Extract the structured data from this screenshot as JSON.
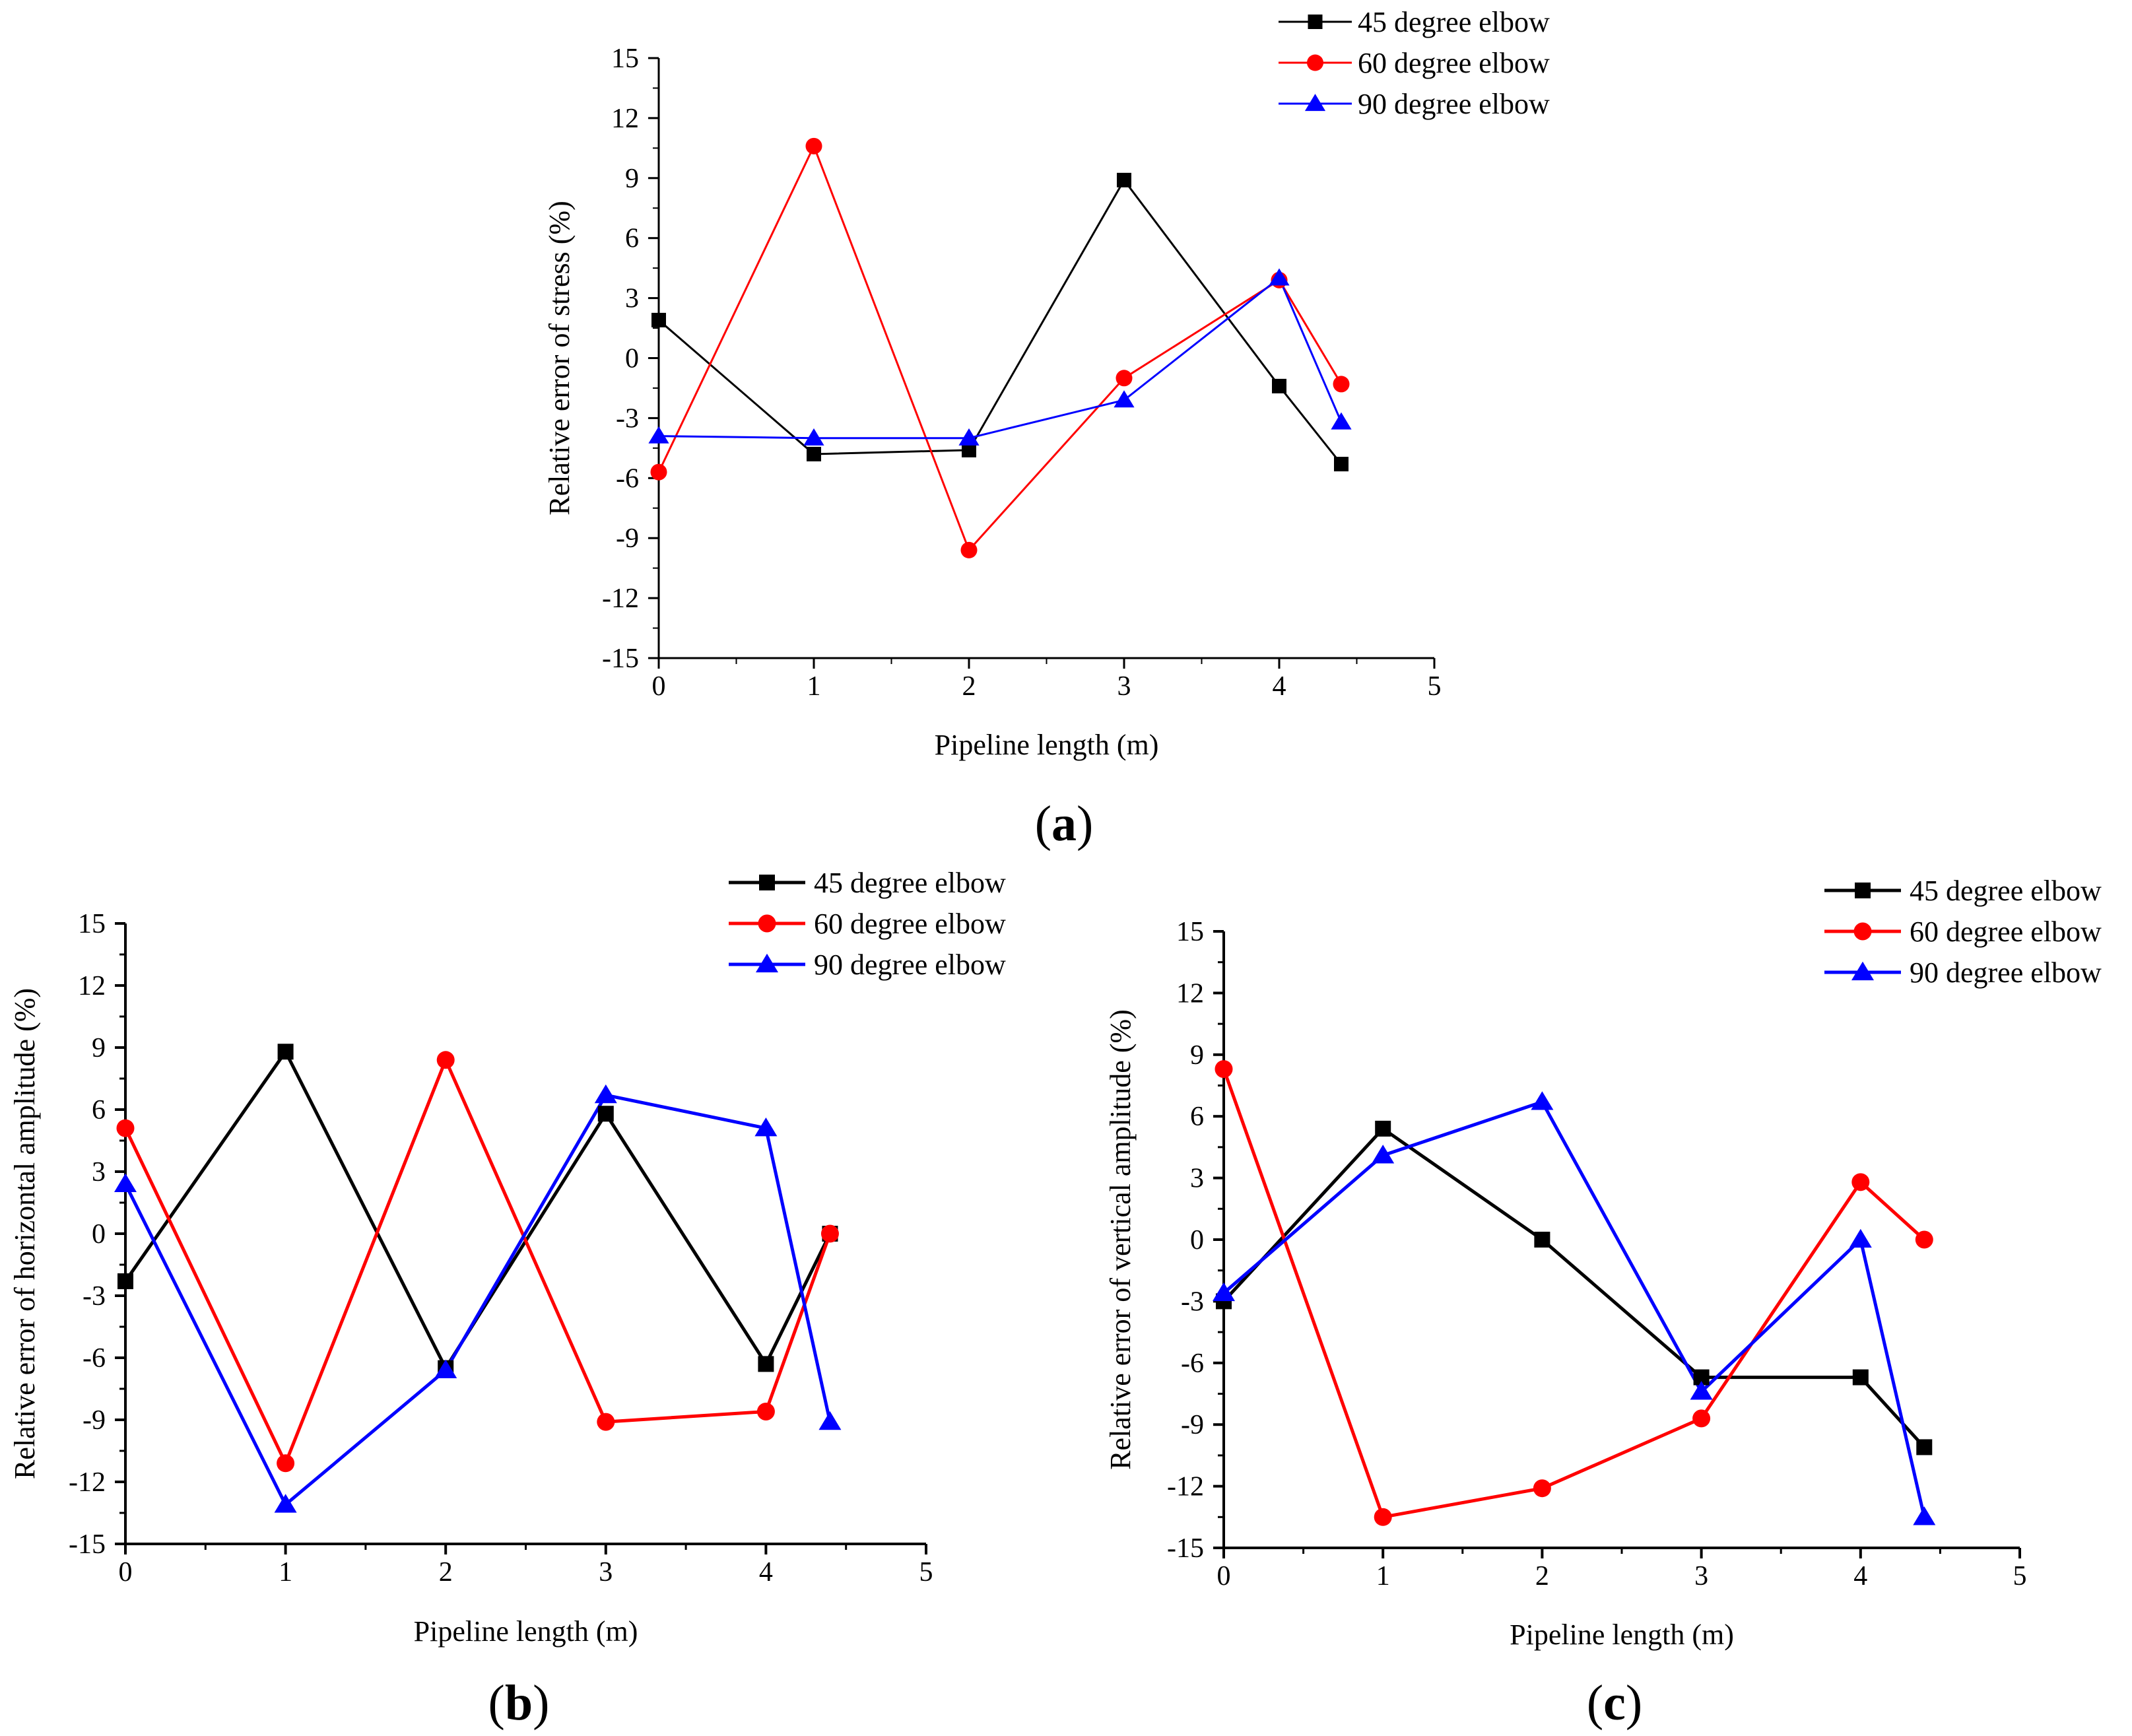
{
  "figure_labels": [
    {
      "open": "(",
      "letter": "a",
      "close": ")"
    },
    {
      "open": "(",
      "letter": "b",
      "close": ")"
    },
    {
      "open": "(",
      "letter": "c",
      "close": ")"
    }
  ],
  "colors": {
    "45": "#000000",
    "60": "#ff0000",
    "90": "#0000ff"
  },
  "chart_data": [
    {
      "type": "line",
      "panel": "a",
      "xlabel": "Pipeline length (m)",
      "ylabel": "Relative error of stress (%)",
      "xlim": [
        0,
        5
      ],
      "ylim": [
        -15,
        15
      ],
      "x_ticks": [
        "0",
        "1",
        "2",
        "3",
        "4",
        "5"
      ],
      "y_ticks": [
        "15",
        "12",
        "9",
        "6",
        "3",
        "0",
        "-3",
        "-6",
        "-9",
        "-12",
        "-15"
      ],
      "legend_position": "top-right",
      "series": [
        {
          "name": "45 degree elbow",
          "color": "#000000",
          "marker": "square",
          "x": [
            0,
            1,
            2,
            3,
            4,
            4.4
          ],
          "values": [
            1.9,
            -4.8,
            -4.6,
            8.9,
            -1.4,
            -5.3
          ]
        },
        {
          "name": "60 degree elbow",
          "color": "#ff0000",
          "marker": "circle",
          "x": [
            0,
            1,
            2,
            3,
            4,
            4.4
          ],
          "values": [
            -5.7,
            10.6,
            -9.6,
            -1.0,
            3.9,
            -1.3
          ]
        },
        {
          "name": "90 degree elbow",
          "color": "#0000ff",
          "marker": "triangle",
          "x": [
            0,
            1,
            2,
            3,
            4,
            4.4
          ],
          "values": [
            -3.9,
            -4.0,
            -4.0,
            -2.1,
            4.0,
            -3.2
          ]
        }
      ]
    },
    {
      "type": "line",
      "panel": "b",
      "xlabel": "Pipeline length (m)",
      "ylabel": "Relative error of horizontal amplitude (%)",
      "xlim": [
        0,
        5
      ],
      "ylim": [
        -15,
        15
      ],
      "x_ticks": [
        "0",
        "1",
        "2",
        "3",
        "4",
        "5"
      ],
      "y_ticks": [
        "15",
        "12",
        "9",
        "6",
        "3",
        "0",
        "-3",
        "-6",
        "-9",
        "-12",
        "-15"
      ],
      "legend_position": "top-right",
      "series": [
        {
          "name": "45 degree elbow",
          "color": "#000000",
          "marker": "square",
          "x": [
            0,
            1,
            2,
            3,
            4,
            4.4
          ],
          "values": [
            -2.3,
            8.8,
            -6.5,
            5.8,
            -6.3,
            0.0
          ]
        },
        {
          "name": "60 degree elbow",
          "color": "#ff0000",
          "marker": "circle",
          "x": [
            0,
            1,
            2,
            3,
            4,
            4.4
          ],
          "values": [
            5.1,
            -11.1,
            8.4,
            -9.1,
            -8.6,
            0.0
          ]
        },
        {
          "name": "90 degree elbow",
          "color": "#0000ff",
          "marker": "triangle",
          "x": [
            0,
            1,
            2,
            3,
            4,
            4.4
          ],
          "values": [
            2.4,
            -13.1,
            -6.6,
            6.7,
            5.1,
            -9.1
          ]
        }
      ]
    },
    {
      "type": "line",
      "panel": "c",
      "xlabel": "Pipeline length (m)",
      "ylabel": "Relative error of vertical amplitude (%)",
      "xlim": [
        0,
        5
      ],
      "ylim": [
        -15,
        15
      ],
      "x_ticks": [
        "0",
        "1",
        "2",
        "3",
        "4",
        "5"
      ],
      "y_ticks": [
        "15",
        "12",
        "9",
        "6",
        "3",
        "0",
        "-3",
        "-6",
        "-9",
        "-12",
        "-15"
      ],
      "legend_position": "top-right",
      "series": [
        {
          "name": "45 degree elbow",
          "color": "#000000",
          "marker": "square",
          "x": [
            0,
            1,
            2,
            3,
            4,
            4.4
          ],
          "values": [
            -3.0,
            5.4,
            0.0,
            -6.7,
            -6.7,
            -10.1
          ]
        },
        {
          "name": "60 degree elbow",
          "color": "#ff0000",
          "marker": "circle",
          "x": [
            0,
            1,
            2,
            3,
            4,
            4.4
          ],
          "values": [
            8.3,
            -13.5,
            -12.1,
            -8.7,
            2.8,
            0.0
          ]
        },
        {
          "name": "90 degree elbow",
          "color": "#0000ff",
          "marker": "triangle",
          "x": [
            0,
            1,
            2,
            3,
            4,
            4.4
          ],
          "values": [
            -2.6,
            4.1,
            6.7,
            -7.4,
            0.0,
            -13.5
          ]
        }
      ]
    }
  ]
}
